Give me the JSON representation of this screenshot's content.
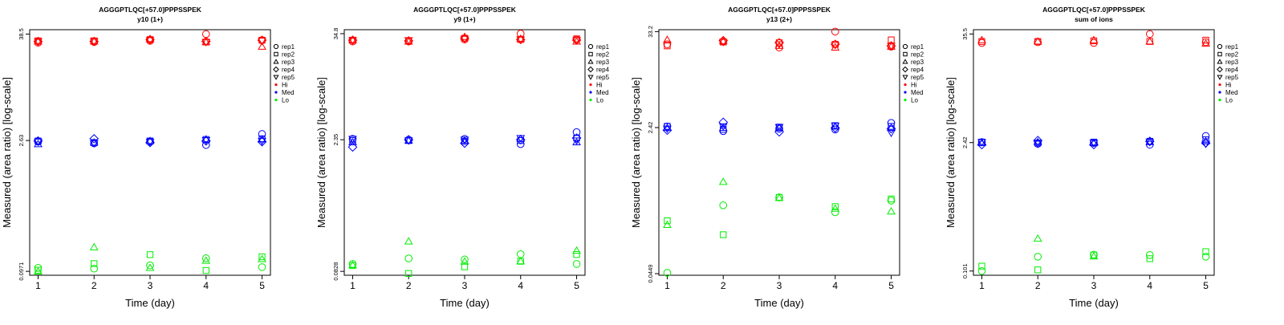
{
  "colors": {
    "Hi": "#ff0000",
    "Med": "#0000ff",
    "Lo": "#00ee00",
    "axis": "#000000"
  },
  "legend": {
    "position": "right",
    "entries": [
      {
        "label": "rep1",
        "symbol": "circle"
      },
      {
        "label": "rep2",
        "symbol": "square"
      },
      {
        "label": "rep3",
        "symbol": "triangle-up"
      },
      {
        "label": "rep4",
        "symbol": "diamond"
      },
      {
        "label": "rep5",
        "symbol": "triangle-down"
      },
      {
        "label": "Hi",
        "symbol": "dot",
        "color": "Hi"
      },
      {
        "label": "Med",
        "symbol": "dot",
        "color": "Med"
      },
      {
        "label": "Lo",
        "symbol": "dot",
        "color": "Lo"
      }
    ]
  },
  "chart_data": [
    {
      "type": "scatter",
      "title": "AGGGPTLQC[+57.0]PPPSSPEK",
      "subtitle": "y10 (1+)",
      "xlabel": "Time (day)",
      "ylabel": "Measured (area ratio) [log-scale]",
      "log_y": true,
      "grid": false,
      "x": [
        1,
        2,
        3,
        4,
        5
      ],
      "xlim": [
        0.85,
        5.15
      ],
      "ylim": [
        0.088,
        43
      ],
      "yticks": [
        0.0971,
        2.63,
        38.5
      ],
      "ytick_labels": [
        "0.0971",
        "2.63",
        "38.5"
      ],
      "series": [
        {
          "name": "Hi",
          "color": "Hi",
          "reps": [
            [
              31.0,
              31.5,
              32.5,
              38.5,
              33.0
            ],
            [
              32.5,
              32.5,
              33.5,
              31.5,
              33.0
            ],
            [
              32.0,
              32.0,
              34.0,
              31.5,
              28.0
            ],
            [
              32.0,
              32.0,
              33.5,
              32.0,
              33.0
            ],
            [
              32.0,
              32.0,
              33.0,
              31.5,
              32.5
            ]
          ]
        },
        {
          "name": "Med",
          "color": "Med",
          "reps": [
            [
              2.55,
              2.45,
              2.55,
              2.35,
              3.1
            ],
            [
              2.6,
              2.5,
              2.6,
              2.7,
              2.75
            ],
            [
              2.4,
              2.5,
              2.6,
              2.7,
              2.7
            ],
            [
              2.6,
              2.75,
              2.5,
              2.6,
              2.55
            ],
            [
              2.55,
              2.45,
              2.55,
              2.65,
              2.6
            ]
          ]
        },
        {
          "name": "Lo",
          "color": "Lo",
          "reps": [
            [
              0.106,
              0.104,
              0.113,
              0.135,
              0.108
            ],
            [
              0.1,
              0.118,
              0.148,
              0.0993,
              0.14
            ],
            [
              0.0965,
              0.178,
              0.106,
              0.127,
              0.132
            ],
            [
              null,
              null,
              null,
              null,
              null
            ],
            [
              null,
              null,
              null,
              null,
              null
            ]
          ]
        }
      ]
    },
    {
      "type": "scatter",
      "title": "AGGGPTLQC[+57.0]PPPSSPEK",
      "subtitle": "y9 (1+)",
      "xlabel": "Time (day)",
      "ylabel": "Measured (area ratio) [log-scale]",
      "log_y": true,
      "grid": false,
      "x": [
        1,
        2,
        3,
        4,
        5
      ],
      "xlim": [
        0.85,
        5.15
      ],
      "ylim": [
        0.075,
        38.5
      ],
      "yticks": [
        0.0828,
        2.35,
        34.8
      ],
      "ytick_labels": [
        "0.0828",
        "2.35",
        "34.8"
      ],
      "series": [
        {
          "name": "Hi",
          "color": "Hi",
          "reps": [
            [
              28.5,
              28.5,
              30.0,
              34.8,
              30.0
            ],
            [
              29.5,
              29.0,
              31.0,
              30.0,
              30.5
            ],
            [
              29.5,
              28.5,
              32.0,
              30.5,
              28.5
            ],
            [
              29.5,
              29.0,
              31.0,
              30.0,
              29.5
            ],
            [
              29.5,
              29.5,
              30.5,
              30.0,
              29.5
            ]
          ]
        },
        {
          "name": "Med",
          "color": "Med",
          "reps": [
            [
              2.4,
              2.35,
              2.4,
              2.1,
              2.85
            ],
            [
              2.3,
              2.3,
              2.25,
              2.3,
              2.45
            ],
            [
              2.2,
              2.3,
              2.3,
              2.4,
              2.2
            ],
            [
              1.95,
              2.35,
              2.15,
              2.35,
              2.45
            ],
            [
              2.4,
              2.3,
              2.35,
              2.45,
              2.3
            ]
          ]
        },
        {
          "name": "Lo",
          "color": "Lo",
          "reps": [
            [
              0.1,
              0.115,
              0.112,
              0.128,
              0.1
            ],
            [
              0.096,
              0.0785,
              0.093,
              0.107,
              0.127
            ],
            [
              0.097,
              0.177,
              0.106,
              0.107,
              0.14
            ],
            [
              null,
              null,
              null,
              null,
              null
            ],
            [
              null,
              null,
              null,
              null,
              null
            ]
          ]
        }
      ]
    },
    {
      "type": "scatter",
      "title": "AGGGPTLQC[+57.0]PPPSSPEK",
      "subtitle": "y13 (2+)",
      "xlabel": "Time (day)",
      "ylabel": "Measured (area ratio) [log-scale]",
      "log_y": true,
      "grid": false,
      "x": [
        1,
        2,
        3,
        4,
        5
      ],
      "xlim": [
        0.85,
        5.15
      ],
      "ylim": [
        0.043,
        35
      ],
      "yticks": [
        0.0449,
        2.42,
        33.2
      ],
      "ytick_labels": [
        "0.0449",
        "2.42",
        "33.2"
      ],
      "series": [
        {
          "name": "Hi",
          "color": "Hi",
          "reps": [
            [
              23.5,
              25.5,
              21.5,
              33.2,
              22.0
            ],
            [
              22.5,
              25.0,
              24.5,
              23.5,
              26.5
            ],
            [
              26.5,
              25.5,
              22.5,
              21.5,
              22.0
            ],
            [
              null,
              26.0,
              24.5,
              23.5,
              22.5
            ],
            [
              null,
              25.0,
              23.5,
              23.0,
              22.5
            ]
          ]
        },
        {
          "name": "Med",
          "color": "Med",
          "reps": [
            [
              2.5,
              2.2,
              2.35,
              2.3,
              2.75
            ],
            [
              2.5,
              2.3,
              2.45,
              2.55,
              2.5
            ],
            [
              2.4,
              2.4,
              2.4,
              2.5,
              2.4
            ],
            [
              2.25,
              2.8,
              2.15,
              2.4,
              2.35
            ],
            [
              2.35,
              2.5,
              2.45,
              2.55,
              2.1
            ]
          ]
        },
        {
          "name": "Lo",
          "color": "Lo",
          "reps": [
            [
              0.046,
              0.29,
              0.36,
              0.24,
              0.33
            ],
            [
              0.19,
              0.13,
              0.36,
              0.28,
              0.345
            ],
            [
              0.17,
              0.55,
              0.355,
              0.265,
              0.245
            ],
            [
              null,
              null,
              null,
              null,
              null
            ],
            [
              null,
              null,
              null,
              null,
              null
            ]
          ]
        }
      ]
    },
    {
      "type": "scatter",
      "title": "AGGGPTLQC[+57.0]PPPSSPEK",
      "subtitle": "sum of ions",
      "xlabel": "Time (day)",
      "ylabel": "Measured (area ratio) [log-scale]",
      "log_y": true,
      "grid": false,
      "x": [
        1,
        2,
        3,
        4,
        5
      ],
      "xlim": [
        0.85,
        5.15
      ],
      "ylim": [
        0.091,
        39.5
      ],
      "yticks": [
        0.101,
        2.42,
        35.5
      ],
      "ytick_labels": [
        "0.101",
        "2.42",
        "35.5"
      ],
      "series": [
        {
          "name": "Hi",
          "color": "Hi",
          "reps": [
            [
              28.5,
              29.0,
              28.5,
              35.5,
              29.0
            ],
            [
              29.5,
              29.5,
              30.0,
              29.5,
              30.5
            ],
            [
              30.5,
              29.5,
              30.5,
              29.5,
              28.0
            ],
            [
              null,
              null,
              null,
              null,
              null
            ],
            [
              null,
              null,
              null,
              null,
              null
            ]
          ]
        },
        {
          "name": "Med",
          "color": "Med",
          "reps": [
            [
              2.45,
              2.35,
              2.4,
              2.3,
              2.85
            ],
            [
              2.45,
              2.4,
              2.45,
              2.5,
              2.6
            ],
            [
              2.4,
              2.45,
              2.4,
              2.45,
              2.5
            ],
            [
              2.3,
              2.55,
              2.3,
              2.5,
              2.4
            ],
            [
              2.45,
              2.35,
              2.4,
              2.45,
              2.35
            ]
          ]
        },
        {
          "name": "Lo",
          "color": "Lo",
          "reps": [
            [
              0.101,
              0.144,
              0.151,
              0.15,
              0.144
            ],
            [
              0.114,
              0.104,
              0.15,
              0.137,
              0.163
            ],
            [
              null,
              0.225,
              0.145,
              null,
              null
            ],
            [
              null,
              null,
              null,
              null,
              null
            ],
            [
              null,
              null,
              null,
              null,
              null
            ]
          ]
        }
      ]
    }
  ]
}
